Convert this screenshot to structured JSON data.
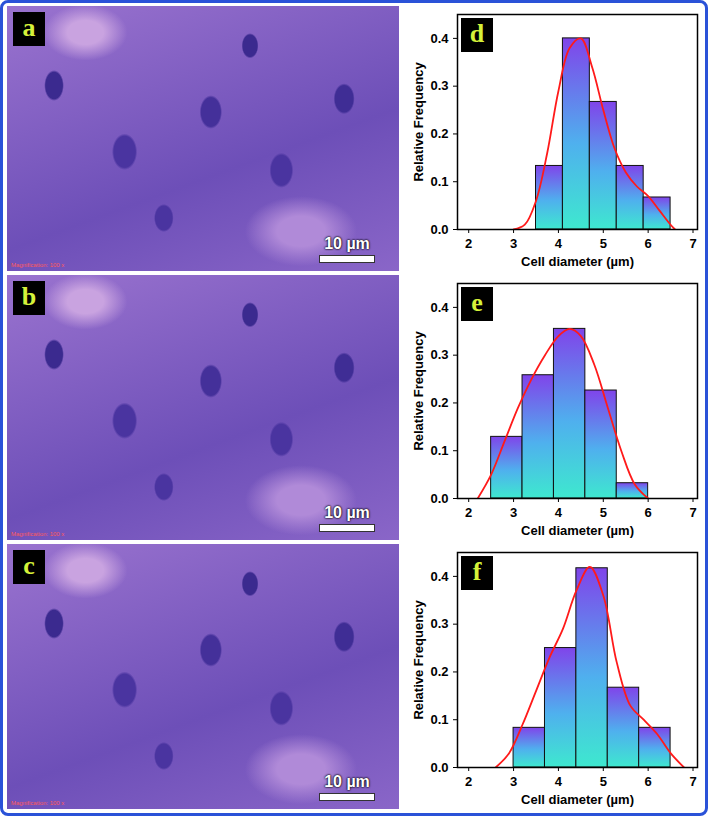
{
  "images": [
    {
      "label": "a",
      "scale_bar": "10 µm",
      "magnification": "Magnification: 100 x"
    },
    {
      "label": "b",
      "scale_bar": "10 µm",
      "magnification": "Magnification: 100 x"
    },
    {
      "label": "c",
      "scale_bar": "10 µm",
      "magnification": "Magnification: 100 x"
    }
  ],
  "chart_data": [
    {
      "type": "histogram",
      "title": "d",
      "x_label": "Cell diameter (µm)",
      "y_label": "Relative Frequency",
      "bins": [
        3.5,
        4.1,
        4.7,
        5.3,
        5.9,
        6.5
      ],
      "values": [
        0.133,
        0.4,
        0.267,
        0.133,
        0.067
      ],
      "color": "#8044ea",
      "curve": {
        "type": "line",
        "color": "#ff1a1a",
        "x": [
          3.0,
          3.25,
          3.5,
          3.75,
          4.0,
          4.25,
          4.5,
          4.75,
          5.0,
          5.25,
          5.5,
          5.75,
          6.0,
          6.25,
          6.5,
          6.6
        ],
        "values": [
          0,
          0.01,
          0.06,
          0.16,
          0.29,
          0.38,
          0.4,
          0.34,
          0.25,
          0.17,
          0.12,
          0.09,
          0.07,
          0.04,
          0.01,
          0
        ]
      },
      "xlim": [
        1.75,
        7.1
      ],
      "xticks": [
        2,
        3,
        4,
        5,
        6,
        7
      ],
      "ylim": [
        0,
        0.45
      ],
      "yticks": [
        {
          "value": 0,
          "label": "0.0"
        },
        0.1,
        0.2,
        0.3,
        0.4
      ]
    },
    {
      "type": "histogram",
      "title": "e",
      "x_label": "Cell diameter (µm)",
      "y_label": "Relative Frequency",
      "bins": [
        2.5,
        3.2,
        3.9,
        4.6,
        5.3,
        6.0
      ],
      "values": [
        0.129,
        0.258,
        0.355,
        0.226,
        0.032
      ],
      "color": "#8044ea",
      "curve": {
        "type": "line",
        "color": "#ff1a1a",
        "x": [
          2.2,
          2.5,
          2.8,
          3.1,
          3.4,
          3.7,
          4.0,
          4.25,
          4.5,
          4.8,
          5.1,
          5.4,
          5.7,
          6.0
        ],
        "values": [
          0,
          0.05,
          0.12,
          0.19,
          0.25,
          0.3,
          0.34,
          0.355,
          0.34,
          0.28,
          0.19,
          0.1,
          0.03,
          0
        ]
      },
      "xlim": [
        1.75,
        7.1
      ],
      "xticks": [
        2,
        3,
        4,
        5,
        6,
        7
      ],
      "ylim": [
        0,
        0.45
      ],
      "yticks": [
        {
          "value": 0,
          "label": "0.0"
        },
        0.1,
        0.2,
        0.3,
        0.4
      ]
    },
    {
      "type": "histogram",
      "title": "f",
      "x_label": "Cell diameter (µm)",
      "y_label": "Relative Frequency",
      "bins": [
        3.0,
        3.7,
        4.4,
        5.1,
        5.8,
        6.5
      ],
      "values": [
        0.083,
        0.25,
        0.417,
        0.167,
        0.083
      ],
      "color": "#8044ea",
      "curve": {
        "type": "line",
        "color": "#ff1a1a",
        "x": [
          2.6,
          2.9,
          3.2,
          3.5,
          3.8,
          4.1,
          4.4,
          4.7,
          5.0,
          5.3,
          5.6,
          5.9,
          6.2,
          6.5,
          6.8
        ],
        "values": [
          0,
          0.03,
          0.09,
          0.16,
          0.23,
          0.29,
          0.37,
          0.42,
          0.36,
          0.22,
          0.13,
          0.1,
          0.07,
          0.03,
          0
        ]
      },
      "xlim": [
        1.75,
        7.1
      ],
      "xticks": [
        2,
        3,
        4,
        5,
        6,
        7
      ],
      "ylim": [
        0,
        0.45
      ],
      "yticks": [
        {
          "value": 0,
          "label": "0.0"
        },
        0.1,
        0.2,
        0.3,
        0.4
      ]
    }
  ]
}
